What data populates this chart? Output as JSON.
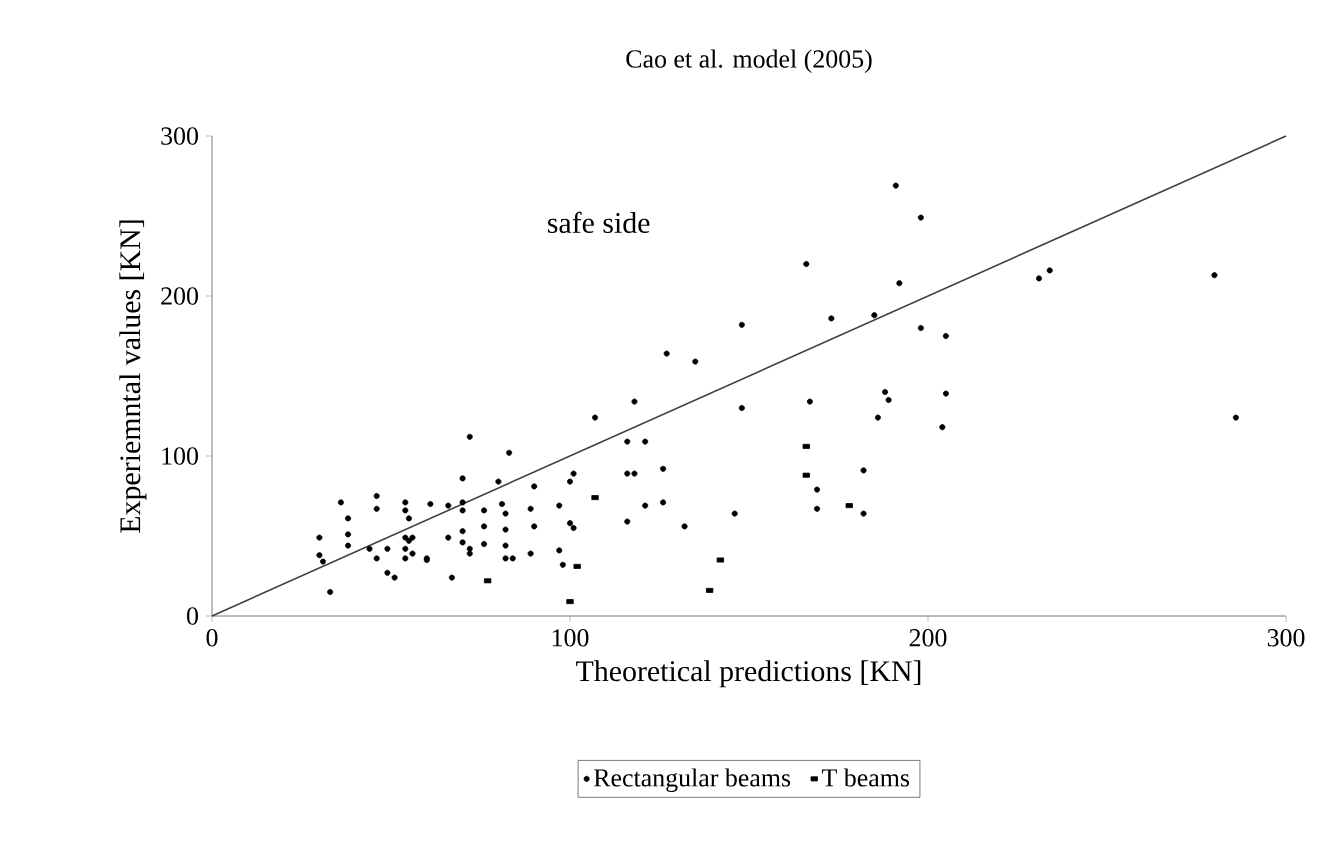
{
  "chart_data": {
    "type": "scatter",
    "title": "Cao et al. model (2005)",
    "xlabel": "Theoretical predictions [KN]",
    "ylabel": "Experiemntal values [KN]",
    "xlim": [
      0,
      300
    ],
    "ylim": [
      0,
      300
    ],
    "xticks": [
      0,
      100,
      200,
      300
    ],
    "yticks": [
      0,
      100,
      200,
      300
    ],
    "grid": false,
    "legend": "bottom",
    "annotations": [
      "safe side"
    ],
    "series": [
      {
        "name": "Rectangular beams",
        "color": "#000000",
        "marker": "circle",
        "x": [
          36,
          46,
          46,
          38,
          54,
          54,
          61,
          55,
          30,
          38,
          38,
          30,
          31,
          33,
          44,
          46,
          49,
          54,
          55,
          56,
          54,
          56,
          54,
          60,
          49,
          51,
          72,
          83,
          107,
          70,
          80,
          90,
          101,
          100,
          66,
          70,
          70,
          76,
          81,
          82,
          89,
          97,
          66,
          70,
          70,
          76,
          82,
          90,
          100,
          101,
          72,
          72,
          76,
          82,
          82,
          84,
          89,
          97,
          98,
          60,
          67,
          166,
          148,
          127,
          135,
          118,
          148,
          167,
          116,
          121,
          116,
          118,
          126,
          121,
          126,
          116,
          132,
          146,
          169,
          169,
          191,
          198,
          192,
          173,
          185,
          198,
          205,
          231,
          188,
          189,
          205,
          186,
          204,
          182,
          182,
          234,
          280,
          286
        ],
        "values": [
          71,
          75,
          67,
          61,
          71,
          66,
          70,
          61,
          49,
          51,
          44,
          38,
          34,
          15,
          42,
          36,
          42,
          49,
          47,
          49,
          42,
          39,
          36,
          36,
          27,
          24,
          112,
          102,
          124,
          86,
          84,
          81,
          89,
          84,
          69,
          71,
          66,
          66,
          70,
          64,
          67,
          69,
          49,
          53,
          46,
          56,
          54,
          56,
          58,
          55,
          42,
          39,
          45,
          44,
          36,
          36,
          39,
          41,
          32,
          35,
          24,
          220,
          182,
          164,
          159,
          134,
          130,
          134,
          109,
          109,
          89,
          89,
          92,
          69,
          71,
          59,
          56,
          64,
          79,
          67,
          269,
          249,
          208,
          186,
          188,
          180,
          175,
          211,
          140,
          135,
          139,
          124,
          118,
          91,
          64,
          216,
          213,
          124
        ]
      },
      {
        "name": "T beams",
        "color": "#000000",
        "marker": "square",
        "x": [
          107,
          77,
          102,
          100,
          166,
          166,
          142,
          139,
          178
        ],
        "values": [
          74,
          22,
          31,
          9,
          106,
          88,
          35,
          16,
          69
        ]
      },
      {
        "type": "line",
        "color": "#404040",
        "marker": "none",
        "x": [
          0,
          300
        ],
        "values": [
          0,
          300
        ]
      }
    ]
  }
}
